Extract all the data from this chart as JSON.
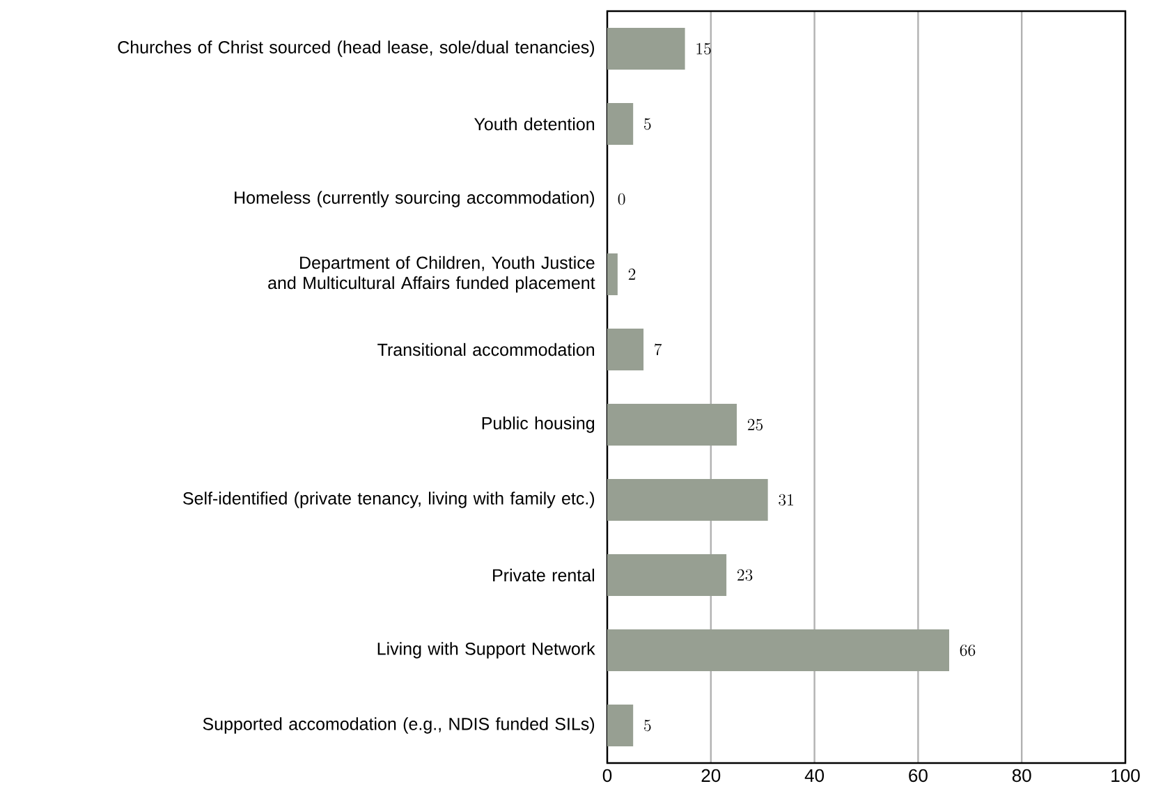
{
  "chart_data": {
    "type": "bar",
    "orientation": "horizontal",
    "categories": [
      "Churches of Christ sourced (head lease, sole/dual tenancies)",
      "Youth detention",
      "Homeless (currently sourcing accommodation)",
      "Department of Children, Youth Justice and Multicultural Affairs funded placement",
      "Transitional accommodation",
      "Public housing",
      "Self-identified (private tenancy, living with family etc.)",
      "Private rental",
      "Living with Support Network",
      "Supported accomodation (e.g., NDIS funded SILs)"
    ],
    "values": [
      15,
      5,
      0,
      2,
      7,
      25,
      31,
      23,
      66,
      5
    ],
    "color": "#979f92",
    "data_labels": true,
    "xlim": [
      0,
      100
    ],
    "xticks": [
      0,
      20,
      40,
      60,
      80,
      100
    ],
    "grid": "x"
  }
}
